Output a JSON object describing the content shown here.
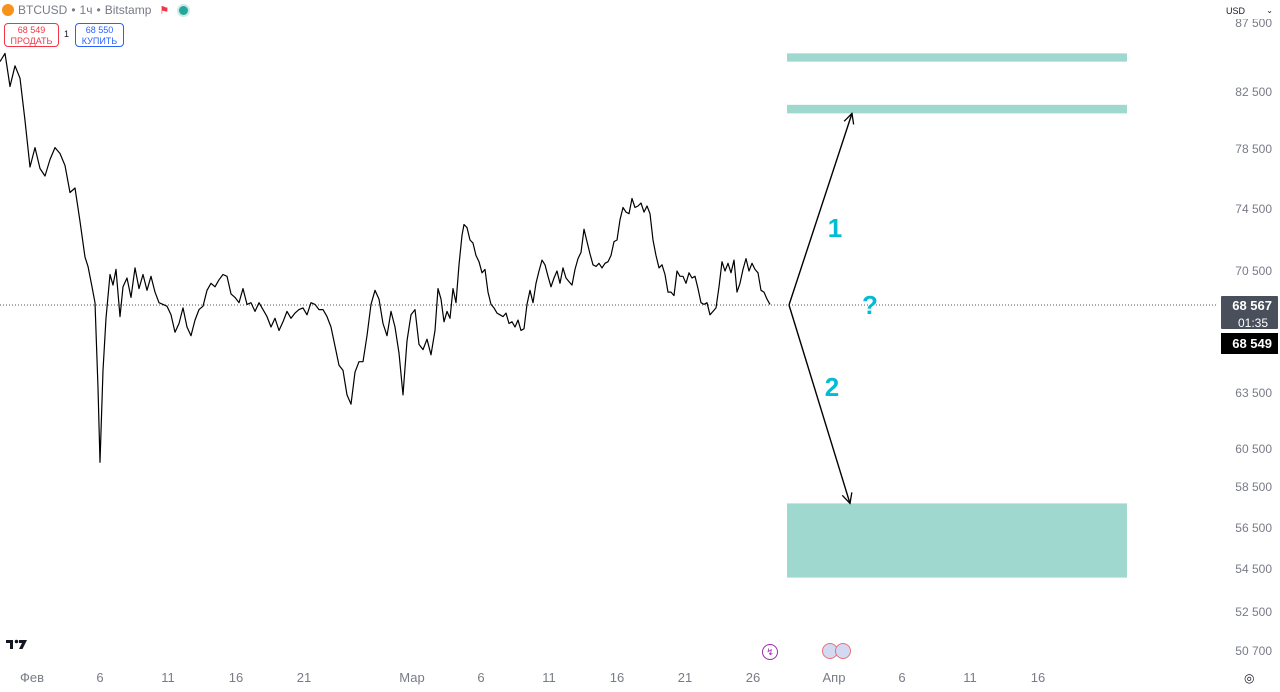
{
  "symbol": {
    "name": "BTCUSD",
    "interval": "1ч",
    "exchange": "Bitstamp",
    "sep": "•"
  },
  "trade": {
    "sell_price": "68 549",
    "sell_label": "ПРОДАТЬ",
    "buy_price": "68 550",
    "buy_label": "КУПИТЬ",
    "spread": "1"
  },
  "currency": "USD",
  "price_axis": {
    "ticks": [
      "82 500",
      "78 500",
      "74 500",
      "70 500",
      "63 500",
      "60 500",
      "58 500",
      "56 500",
      "54 500",
      "52 500",
      "50 700"
    ],
    "top_cut_tick": "87 500",
    "last_price": "68 567",
    "countdown": "01:35",
    "bid_price": "68 549"
  },
  "time_axis": {
    "ticks": [
      "Фев",
      "6",
      "11",
      "16",
      "21",
      "Мар",
      "6",
      "11",
      "16",
      "21",
      "26",
      "Апр",
      "6",
      "11",
      "16"
    ]
  },
  "annotations": {
    "scenario1": "1",
    "scenario2": "2",
    "question": "?"
  },
  "colors": {
    "zone": "#9fd8cf",
    "annotation_text": "#00bcd4",
    "price_line": "#000000",
    "axis_text": "#787b86"
  },
  "icons": [
    "bitcoin-logo-icon",
    "flag-icon",
    "market-status-icon",
    "chevron-down-icon",
    "tradingview-logo-icon",
    "lightning-event-icon",
    "us-flag-event-icon",
    "settings-icon"
  ],
  "chart_data": {
    "type": "line",
    "series": [
      {
        "values": [
          [
            0,
            84700
          ],
          [
            5,
            85300
          ],
          [
            10,
            82900
          ],
          [
            15,
            84400
          ],
          [
            20,
            83500
          ],
          [
            25,
            80500
          ],
          [
            30,
            77300
          ],
          [
            35,
            78600
          ],
          [
            40,
            77200
          ],
          [
            45,
            76700
          ],
          [
            50,
            77800
          ],
          [
            55,
            78600
          ],
          [
            60,
            78200
          ],
          [
            65,
            77400
          ],
          [
            70,
            75600
          ],
          [
            75,
            75900
          ],
          [
            80,
            73700
          ],
          [
            85,
            71400
          ],
          [
            88,
            70800
          ],
          [
            92,
            69600
          ],
          [
            95,
            68700
          ],
          [
            98,
            63800
          ],
          [
            100,
            59800
          ],
          [
            103,
            64800
          ],
          [
            106,
            67800
          ],
          [
            110,
            70300
          ],
          [
            113,
            69700
          ],
          [
            116,
            70600
          ],
          [
            120,
            67900
          ],
          [
            123,
            69600
          ],
          [
            127,
            70100
          ],
          [
            131,
            69000
          ],
          [
            135,
            70700
          ],
          [
            139,
            69500
          ],
          [
            143,
            70300
          ],
          [
            147,
            69400
          ],
          [
            151,
            70200
          ],
          [
            155,
            69300
          ],
          [
            159,
            68700
          ],
          [
            163,
            68600
          ],
          [
            167,
            68500
          ],
          [
            171,
            68000
          ],
          [
            175,
            67000
          ],
          [
            179,
            67500
          ],
          [
            183,
            68400
          ],
          [
            187,
            67300
          ],
          [
            191,
            66800
          ],
          [
            195,
            67700
          ],
          [
            199,
            68300
          ],
          [
            203,
            68500
          ],
          [
            207,
            69400
          ],
          [
            211,
            69800
          ],
          [
            215,
            69600
          ],
          [
            219,
            70000
          ],
          [
            223,
            70300
          ],
          [
            227,
            70200
          ],
          [
            231,
            69200
          ],
          [
            235,
            69000
          ],
          [
            239,
            68700
          ],
          [
            243,
            69500
          ],
          [
            247,
            68600
          ],
          [
            251,
            68700
          ],
          [
            255,
            68200
          ],
          [
            259,
            68700
          ],
          [
            263,
            68300
          ],
          [
            267,
            67900
          ],
          [
            271,
            67300
          ],
          [
            275,
            67800
          ],
          [
            279,
            67100
          ],
          [
            283,
            67600
          ],
          [
            287,
            68200
          ],
          [
            291,
            67800
          ],
          [
            295,
            68100
          ],
          [
            299,
            68300
          ],
          [
            303,
            68400
          ],
          [
            307,
            68000
          ],
          [
            311,
            68700
          ],
          [
            315,
            68600
          ],
          [
            319,
            68300
          ],
          [
            323,
            68300
          ],
          [
            327,
            67900
          ],
          [
            331,
            67300
          ],
          [
            335,
            66200
          ],
          [
            339,
            65100
          ],
          [
            343,
            64800
          ],
          [
            347,
            63400
          ],
          [
            351,
            62900
          ],
          [
            355,
            64700
          ],
          [
            359,
            65300
          ],
          [
            363,
            65300
          ],
          [
            367,
            66800
          ],
          [
            371,
            68600
          ],
          [
            375,
            69400
          ],
          [
            379,
            68900
          ],
          [
            383,
            67500
          ],
          [
            387,
            66800
          ],
          [
            391,
            68200
          ],
          [
            395,
            67300
          ],
          [
            399,
            65800
          ],
          [
            403,
            63400
          ],
          [
            407,
            66500
          ],
          [
            411,
            68000
          ],
          [
            415,
            68300
          ],
          [
            419,
            66300
          ],
          [
            423,
            66000
          ],
          [
            427,
            66600
          ],
          [
            431,
            65700
          ],
          [
            435,
            67100
          ],
          [
            438,
            69500
          ],
          [
            441,
            68900
          ],
          [
            444,
            67600
          ],
          [
            447,
            68200
          ],
          [
            450,
            67800
          ],
          [
            453,
            69500
          ],
          [
            456,
            68700
          ],
          [
            459,
            70900
          ],
          [
            462,
            72800
          ],
          [
            464,
            73500
          ],
          [
            467,
            73300
          ],
          [
            470,
            72500
          ],
          [
            473,
            72300
          ],
          [
            476,
            71500
          ],
          [
            479,
            71100
          ],
          [
            482,
            70400
          ],
          [
            485,
            70600
          ],
          [
            488,
            69300
          ],
          [
            491,
            68600
          ],
          [
            494,
            68400
          ],
          [
            497,
            68100
          ],
          [
            500,
            68000
          ],
          [
            503,
            67900
          ],
          [
            506,
            68100
          ],
          [
            509,
            67500
          ],
          [
            512,
            67600
          ],
          [
            515,
            67300
          ],
          [
            518,
            67700
          ],
          [
            521,
            67100
          ],
          [
            524,
            67200
          ],
          [
            527,
            68600
          ],
          [
            530,
            69400
          ],
          [
            533,
            68700
          ],
          [
            536,
            69800
          ],
          [
            539,
            70500
          ],
          [
            542,
            71200
          ],
          [
            545,
            70900
          ],
          [
            548,
            70200
          ],
          [
            551,
            69600
          ],
          [
            554,
            70100
          ],
          [
            557,
            70500
          ],
          [
            560,
            69800
          ],
          [
            563,
            70700
          ],
          [
            566,
            70100
          ],
          [
            569,
            69900
          ],
          [
            572,
            69700
          ],
          [
            575,
            70600
          ],
          [
            578,
            71300
          ],
          [
            581,
            71700
          ],
          [
            584,
            73200
          ],
          [
            587,
            72400
          ],
          [
            590,
            71600
          ],
          [
            593,
            70900
          ],
          [
            596,
            70800
          ],
          [
            599,
            71000
          ],
          [
            602,
            70700
          ],
          [
            605,
            71000
          ],
          [
            608,
            71100
          ],
          [
            611,
            71500
          ],
          [
            614,
            72400
          ],
          [
            617,
            72500
          ],
          [
            620,
            73800
          ],
          [
            623,
            74600
          ],
          [
            626,
            74300
          ],
          [
            629,
            74200
          ],
          [
            632,
            75200
          ],
          [
            635,
            74600
          ],
          [
            638,
            74700
          ],
          [
            641,
            74900
          ],
          [
            644,
            74300
          ],
          [
            647,
            74700
          ],
          [
            650,
            74200
          ],
          [
            653,
            72500
          ],
          [
            656,
            71500
          ],
          [
            659,
            70700
          ],
          [
            662,
            70900
          ],
          [
            665,
            70300
          ],
          [
            668,
            69300
          ],
          [
            671,
            69300
          ],
          [
            674,
            69100
          ],
          [
            677,
            70500
          ],
          [
            680,
            70200
          ],
          [
            683,
            70200
          ],
          [
            686,
            69800
          ],
          [
            689,
            70400
          ],
          [
            692,
            70100
          ],
          [
            695,
            70200
          ],
          [
            698,
            69500
          ],
          [
            701,
            68700
          ],
          [
            704,
            68600
          ],
          [
            707,
            68700
          ],
          [
            710,
            68000
          ],
          [
            713,
            68200
          ],
          [
            716,
            68400
          ],
          [
            719,
            69600
          ],
          [
            722,
            71100
          ],
          [
            725,
            70500
          ],
          [
            728,
            71000
          ],
          [
            731,
            70400
          ],
          [
            734,
            71200
          ],
          [
            737,
            69300
          ],
          [
            740,
            69800
          ],
          [
            743,
            70600
          ],
          [
            746,
            71300
          ],
          [
            749,
            70500
          ],
          [
            752,
            71000
          ],
          [
            755,
            70600
          ],
          [
            758,
            70400
          ],
          [
            761,
            69400
          ],
          [
            764,
            69300
          ],
          [
            767,
            68900
          ],
          [
            770,
            68600
          ]
        ]
      }
    ],
    "x_axis": {
      "type": "date",
      "ticks": [
        "Фев",
        "6",
        "11",
        "16",
        "21",
        "Мар",
        "6",
        "11",
        "16",
        "21",
        "26",
        "Апр",
        "6",
        "11",
        "16"
      ]
    },
    "y_axis": {
      "ticks": [
        82500,
        78500,
        74500,
        70500,
        63500,
        60500,
        58500,
        56500,
        54500,
        52500,
        50700
      ]
    },
    "last_price": 68567,
    "bid": 68549,
    "zones": [
      {
        "from": 85300,
        "to": 84700
      },
      {
        "from": 81600,
        "to": 81000
      },
      {
        "from": 57700,
        "to": 54100
      }
    ],
    "scenarios": [
      {
        "label": "1",
        "from": 68567,
        "to": 81000
      },
      {
        "label": "2",
        "from": 68567,
        "to": 57700
      }
    ]
  }
}
